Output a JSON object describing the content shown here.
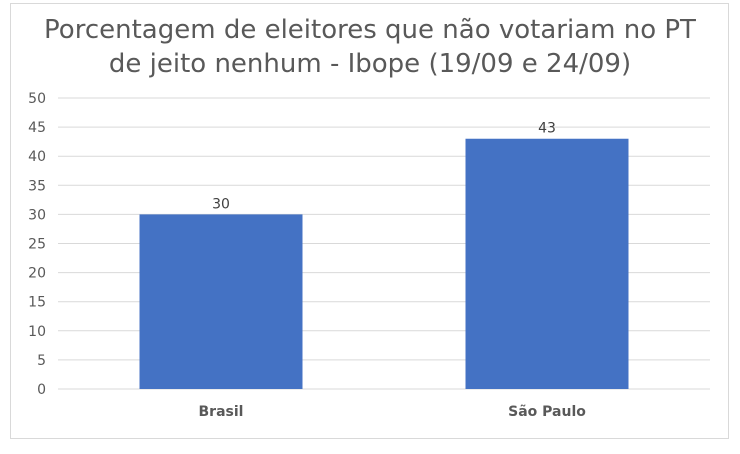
{
  "chart_data": {
    "type": "bar",
    "title_lines": [
      "Porcentagem de eleitores que não votariam no PT",
      "de jeito nenhum - Ibope (19/09 e 24/09)"
    ],
    "title": "Porcentagem de eleitores que não votariam no PT de jeito nenhum - Ibope (19/09 e 24/09)",
    "categories": [
      "Brasil",
      "São Paulo"
    ],
    "values": [
      30,
      43
    ],
    "data_labels": [
      "30",
      "43"
    ],
    "xlabel": "",
    "ylabel": "",
    "ylim": [
      0,
      50
    ],
    "yticks": [
      0,
      5,
      10,
      15,
      20,
      25,
      30,
      35,
      40,
      45,
      50
    ],
    "grid": true,
    "legend": "none",
    "colors": {
      "bar": "#4472C4",
      "grid": "#d9d9d9",
      "text": "#595959"
    }
  }
}
